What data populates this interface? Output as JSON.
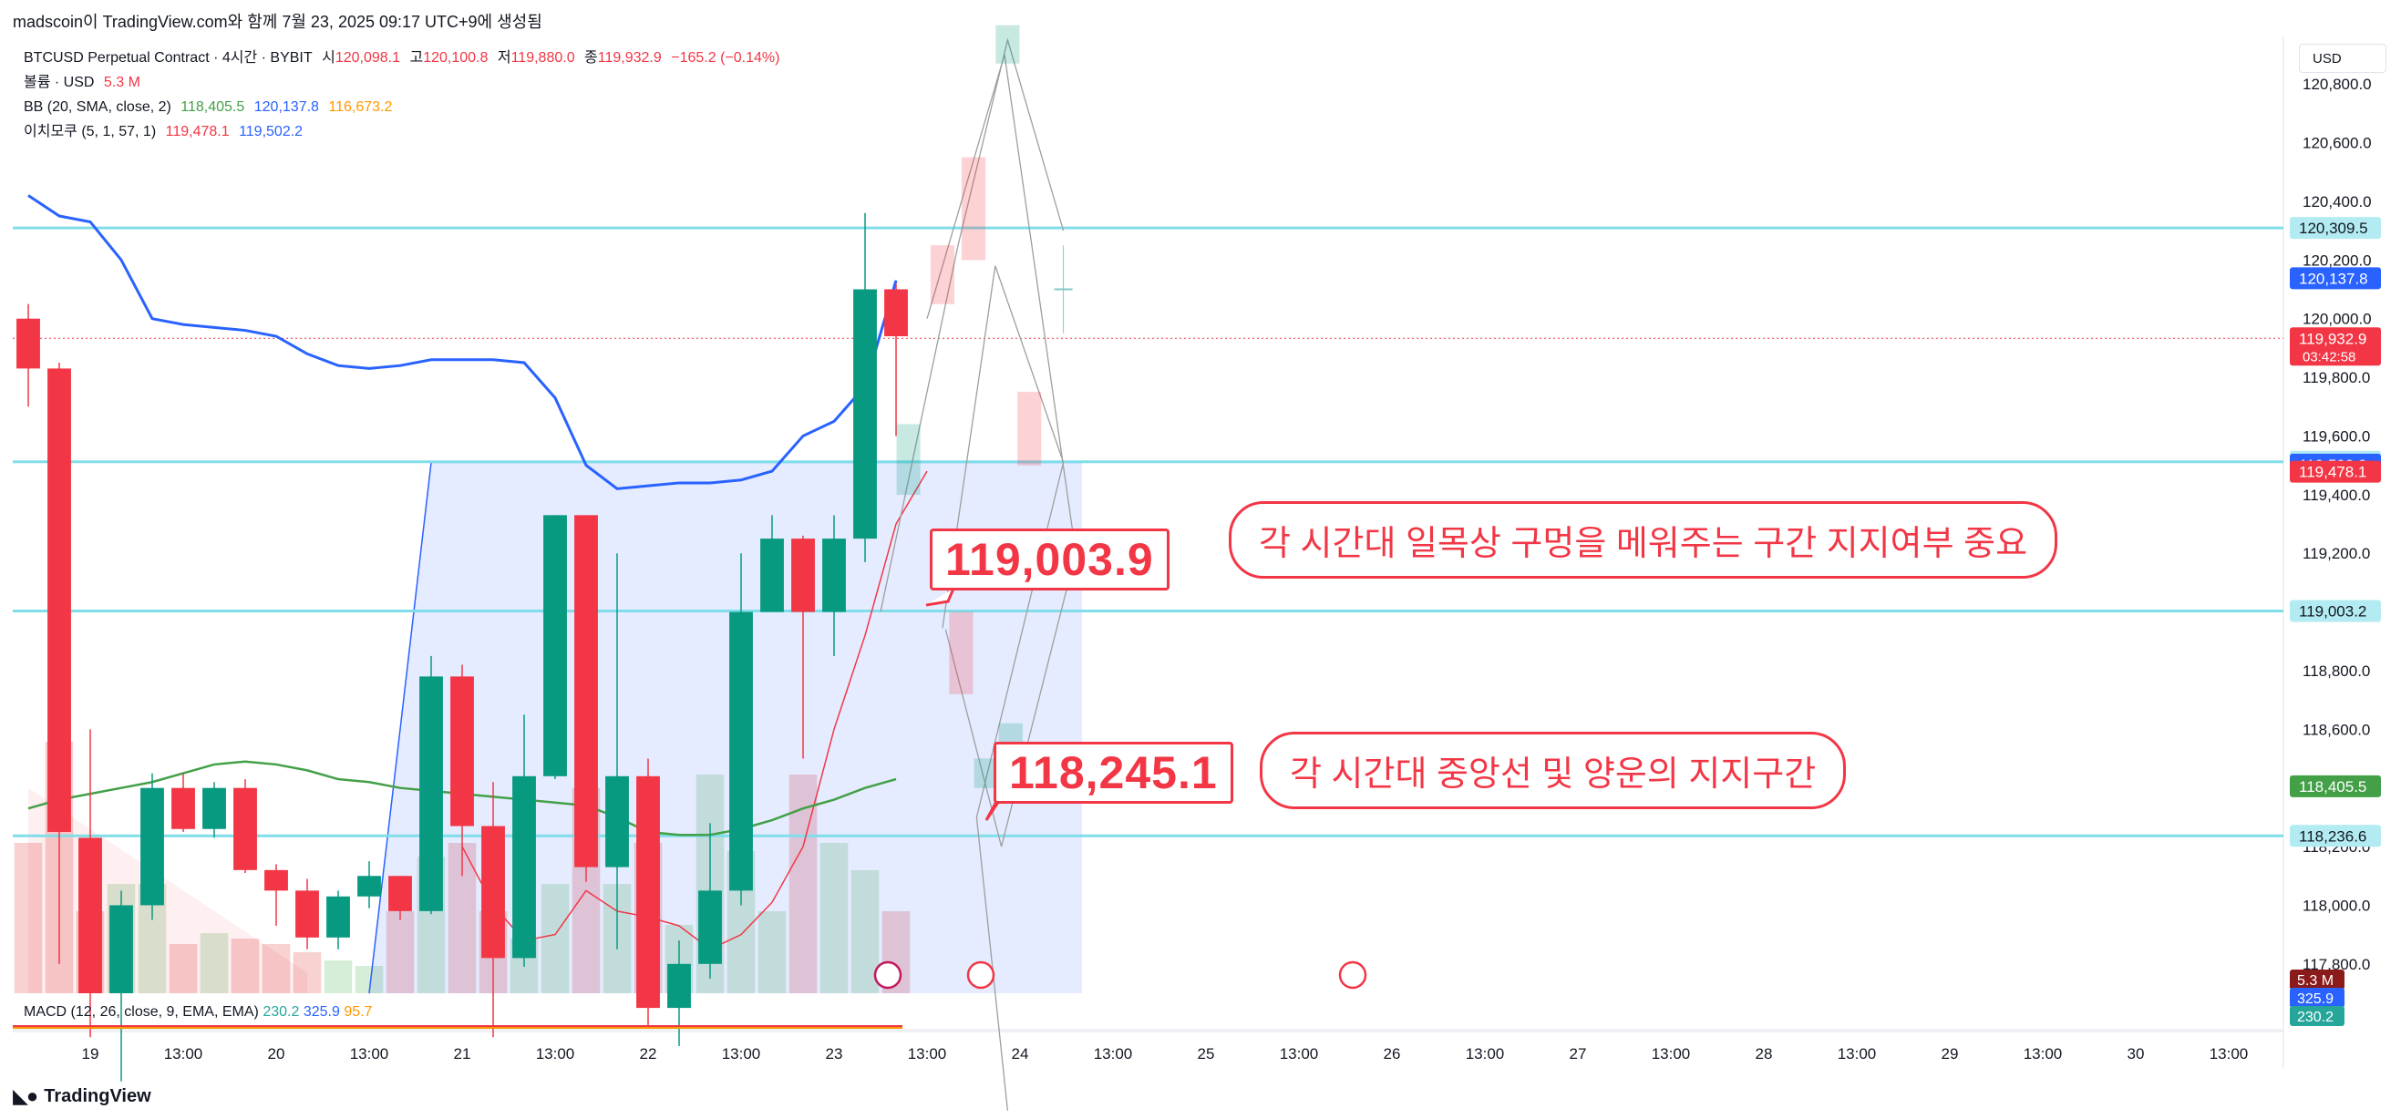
{
  "header": {
    "attribution": "madscoin이 TradingView.com와 함께 7월 23, 2025 09:17 UTC+9에 생성됨"
  },
  "legend": {
    "symbol": "BTCUSD Perpetual Contract · 4시간 · BYBIT",
    "open_label": "시",
    "open": "120,098.1",
    "high_label": "고",
    "high": "120,100.8",
    "low_label": "저",
    "low": "119,880.0",
    "close_label": "종",
    "close": "119,932.9",
    "change": "−165.2 (−0.14%)",
    "volume_label": "볼륨 · USD",
    "volume": "5.3 M",
    "bb_label": "BB (20, SMA, close, 2)",
    "bb_basis": "118,405.5",
    "bb_upper": "120,137.8",
    "bb_lower": "116,673.2",
    "ichimoku_label": "이치모쿠 (5, 1, 57, 1)",
    "ichimoku_a": "119,478.1",
    "ichimoku_b": "119,502.2"
  },
  "macd": {
    "label": "MACD (12, 26, close, 9, EMA, EMA)",
    "v1": "230.2",
    "v2": "325.9",
    "v3": "95.7"
  },
  "currency_button": "USD",
  "footer": {
    "brand": "TradingView"
  },
  "callouts": {
    "price_high": "119,003.9",
    "price_low": "118,245.1",
    "note_high": "각 시간대 일목상 구멍을 메워주는 구간 지지여부 중요",
    "note_low": "각 시간대 중앙선 및 양운의 지지구간"
  },
  "colors": {
    "up": "#089981",
    "down": "#f23645",
    "bb_basis": "#43a047",
    "conversion": "#2962ff",
    "horizontal_line": "#80deea",
    "cloud": "#2962ff",
    "volume_up": "#a5d6a7",
    "volume_down": "#ef9a9a"
  },
  "chart_data": {
    "type": "candlestick",
    "interval": "4시간",
    "y_axis": {
      "ylim": [
        117700,
        120900
      ],
      "ticks": [
        "117,800.0",
        "118,000.0",
        "118,200.0",
        "118,400.0",
        "118,600.0",
        "118,800.0",
        "119,000.0",
        "119,200.0",
        "119,400.0",
        "119,600.0",
        "119,800.0",
        "120,000.0",
        "120,200.0",
        "120,400.0",
        "120,600.0",
        "120,800.0"
      ],
      "tick_values": [
        117800,
        118000,
        118200,
        118400,
        118600,
        118800,
        119000,
        119200,
        119400,
        119600,
        119800,
        120000,
        120200,
        120400,
        120600,
        120800
      ]
    },
    "x_axis": {
      "labels": [
        "19",
        "13:00",
        "20",
        "13:00",
        "21",
        "13:00",
        "22",
        "13:00",
        "23",
        "13:00",
        "24",
        "13:00",
        "25",
        "13:00",
        "26",
        "13:00",
        "27",
        "13:00",
        "28",
        "13:00",
        "29",
        "13:00",
        "30",
        "13:00"
      ],
      "bar_index": [
        2,
        5,
        8,
        11,
        14,
        17,
        20,
        23,
        26,
        29,
        32,
        35,
        38,
        41,
        44,
        47,
        50,
        53,
        56,
        59,
        62,
        65,
        68,
        71
      ]
    },
    "candles": [
      [
        120000,
        120050,
        119700,
        119830
      ],
      [
        119830,
        119850,
        117800,
        118250
      ],
      [
        118230,
        118600,
        117550,
        117700
      ],
      [
        117700,
        118050,
        117400,
        118000
      ],
      [
        118000,
        118450,
        117950,
        118400
      ],
      [
        118400,
        118450,
        118250,
        118260
      ],
      [
        118260,
        118420,
        118230,
        118400
      ],
      [
        118400,
        118430,
        118110,
        118120
      ],
      [
        118120,
        118140,
        117930,
        118050
      ],
      [
        118050,
        118090,
        117850,
        117890
      ],
      [
        117890,
        118050,
        117850,
        118030
      ],
      [
        118030,
        118150,
        117990,
        118100
      ],
      [
        118100,
        118100,
        117950,
        117980
      ],
      [
        117980,
        118850,
        117970,
        118780
      ],
      [
        118780,
        118820,
        118100,
        118270
      ],
      [
        118270,
        118420,
        117550,
        117820
      ],
      [
        117820,
        118650,
        117790,
        118440
      ],
      [
        118440,
        119330,
        118430,
        119330
      ],
      [
        119330,
        119330,
        118080,
        118130
      ],
      [
        118130,
        119200,
        117850,
        118440
      ],
      [
        118440,
        118500,
        117580,
        117650
      ],
      [
        117650,
        117880,
        117520,
        117800
      ],
      [
        117800,
        118280,
        117750,
        118050
      ],
      [
        118050,
        119200,
        118000,
        119000
      ],
      [
        119000,
        119330,
        119000,
        119250
      ],
      [
        119250,
        119260,
        118500,
        119000
      ],
      [
        119000,
        119330,
        118850,
        119250
      ],
      [
        119250,
        120360,
        119170,
        120100
      ],
      [
        120100,
        120120,
        119600,
        119940
      ]
    ],
    "projected_candles": [
      [
        119550,
        119400,
        119550,
        119640
      ],
      [
        118960,
        119000,
        118720,
        118660
      ],
      [
        120050,
        120200,
        120050,
        120200
      ],
      [
        120200,
        120200,
        120390,
        120200
      ],
      [
        118390,
        118390,
        118400,
        118410
      ],
      [
        119400,
        119600,
        119400,
        119500
      ],
      [
        120220,
        120530,
        120450,
        120870
      ],
      [
        120100,
        120200,
        118840,
        118950
      ]
    ],
    "bb_basis": [
      118330,
      118360,
      118380,
      118400,
      118420,
      118450,
      118480,
      118490,
      118480,
      118460,
      118430,
      118420,
      118400,
      118390,
      118380,
      118370,
      118360,
      118350,
      118340,
      118300,
      118250,
      118240,
      118240,
      118260,
      118290,
      118330,
      118360,
      118400,
      118430
    ],
    "conversion_line": [
      120420,
      120350,
      120330,
      120200,
      120000,
      119980,
      119970,
      119960,
      119940,
      119880,
      119840,
      119830,
      119840,
      119860,
      119860,
      119860,
      119850,
      119730,
      119500,
      119420,
      119430,
      119440,
      119440,
      119450,
      119480,
      119600,
      119650,
      119770,
      120130
    ],
    "cloud": {
      "lead_a": [
        118380,
        118330,
        118300,
        118260,
        118250,
        118200,
        118140,
        118080,
        118020,
        117960,
        117930,
        117900,
        117900,
        117950,
        117980,
        118000,
        118050,
        118120,
        118180,
        118240,
        118280,
        118320,
        118370,
        118410
      ],
      "lead_b": [
        117700,
        117700,
        117700,
        117700,
        117700,
        117700,
        117700,
        117700,
        117700,
        117700,
        117700,
        117700,
        117700,
        117700,
        117700,
        117700,
        117700,
        117700,
        117700,
        117700,
        117700,
        117700,
        117700,
        117700
      ],
      "upper_flat": 119510
    },
    "horizontal_lines": [
      {
        "value": 120309.5,
        "label": "120,309.5"
      },
      {
        "value": 119512.1,
        "label": "119,512.1"
      },
      {
        "value": 119003.2,
        "label": "119,003.2"
      },
      {
        "value": 118236.6,
        "label": "118,236.6"
      }
    ],
    "price_tags": [
      {
        "value": 120309.5,
        "label": "120,309.5",
        "bg": "#b2ebf2",
        "fg": "#131722"
      },
      {
        "value": 120137.8,
        "label": "120,137.8",
        "bg": "#2962ff",
        "fg": "#ffffff"
      },
      {
        "value": 119932.9,
        "label": "119,932.9",
        "sub": "03:42:58",
        "bg": "#f23645",
        "fg": "#ffffff"
      },
      {
        "value": 119512.1,
        "label": "119,512.1",
        "bg": "#b2ebf2",
        "fg": "#131722"
      },
      {
        "value": 119502.2,
        "label": "119,502.2",
        "bg": "#2962ff",
        "fg": "#ffffff"
      },
      {
        "value": 119478.1,
        "label": "119,478.1",
        "bg": "#f23645",
        "fg": "#ffffff"
      },
      {
        "value": 119003.2,
        "label": "119,003.2",
        "bg": "#b2ebf2",
        "fg": "#131722"
      },
      {
        "value": 118405.5,
        "label": "118,405.5",
        "bg": "#43a047",
        "fg": "#ffffff"
      },
      {
        "value": 118236.6,
        "label": "118,236.6",
        "bg": "#b2ebf2",
        "fg": "#131722"
      }
    ],
    "volume_tags": [
      {
        "label": "5.3 M",
        "bg": "#8b1a1a",
        "fg": "#ffffff"
      },
      {
        "label": "325.9",
        "bg": "#2962ff",
        "fg": "#ffffff"
      },
      {
        "label": "230.2",
        "bg": "#26a69a",
        "fg": "#ffffff"
      }
    ],
    "volumes": [
      0.55,
      0.92,
      0.3,
      0.4,
      0.4,
      0.18,
      0.22,
      0.2,
      0.18,
      0.15,
      0.12,
      0.1,
      0.3,
      0.5,
      0.55,
      0.3,
      0.2,
      0.4,
      0.75,
      0.4,
      0.55,
      0.25,
      0.8,
      0.52,
      0.3,
      0.8,
      0.55,
      0.45,
      0.3
    ]
  }
}
